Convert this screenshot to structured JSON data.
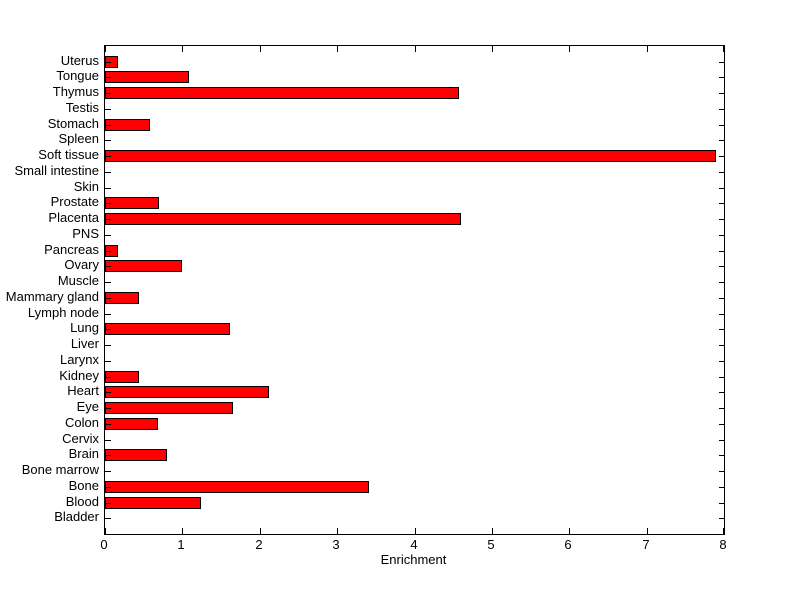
{
  "figure": {
    "background_color": "#ffffff",
    "axis_color": "#000000"
  },
  "chart_data": {
    "type": "bar",
    "orientation": "horizontal",
    "title": "",
    "xlabel": "Enrichment",
    "ylabel": "",
    "xlim": [
      0,
      8
    ],
    "xticks": [
      0,
      1,
      2,
      3,
      4,
      5,
      6,
      7,
      8
    ],
    "grid": false,
    "legend": null,
    "bar_color": "#ff0000",
    "bar_edge_color": "#000000",
    "categories": [
      "Uterus",
      "Tongue",
      "Thymus",
      "Testis",
      "Stomach",
      "Spleen",
      "Soft tissue",
      "Small intestine",
      "Skin",
      "Prostate",
      "Placenta",
      "PNS",
      "Pancreas",
      "Ovary",
      "Muscle",
      "Mammary gland",
      "Lymph node",
      "Lung",
      "Liver",
      "Larynx",
      "Kidney",
      "Heart",
      "Eye",
      "Colon",
      "Cervix",
      "Brain",
      "Bone marrow",
      "Bone",
      "Blood",
      "Bladder"
    ],
    "values": [
      0.17,
      1.08,
      4.57,
      0,
      0.58,
      0,
      7.9,
      0,
      0,
      0.7,
      4.6,
      0,
      0.17,
      1.0,
      0,
      0.44,
      0,
      1.61,
      0,
      0,
      0.44,
      2.12,
      1.66,
      0.69,
      0,
      0.8,
      0,
      3.41,
      1.24,
      0
    ]
  }
}
